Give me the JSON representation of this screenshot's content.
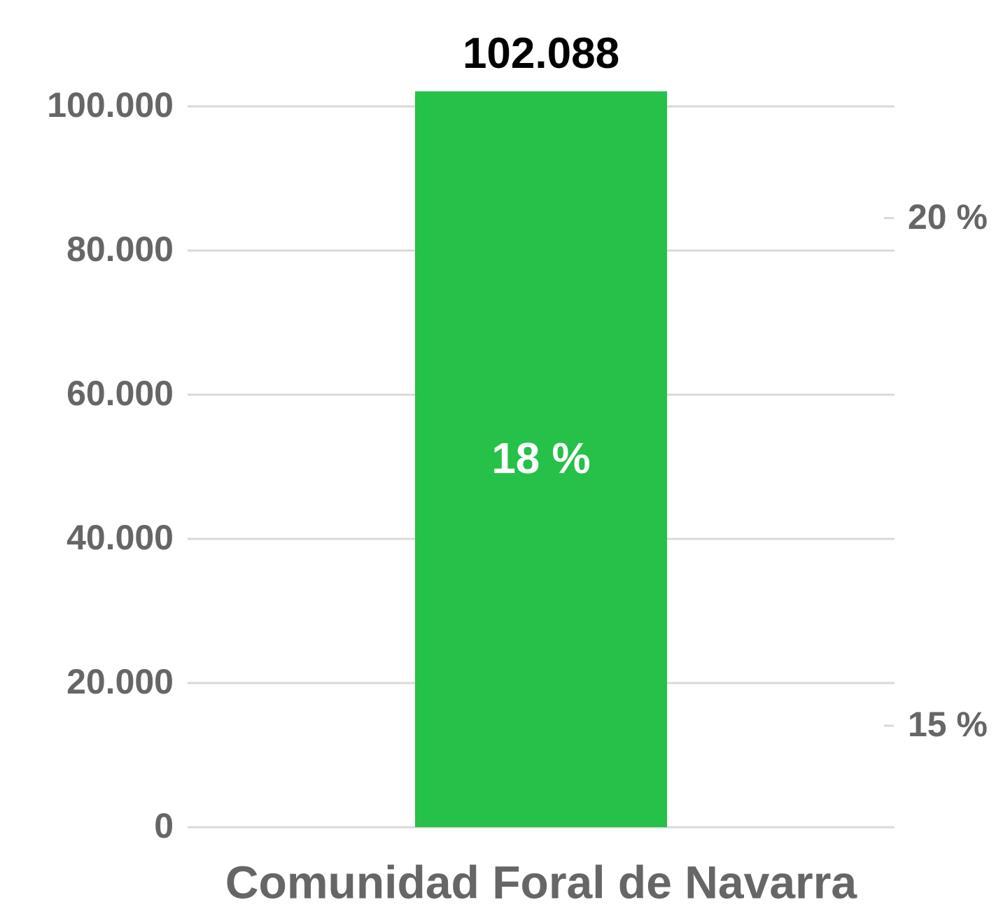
{
  "chart_data": {
    "type": "bar",
    "categories": [
      "Comunidad Foral de Navarra"
    ],
    "series": [
      {
        "color": "#25c148",
        "values": [
          102088
        ],
        "value_labels": [
          "102.088"
        ]
      },
      {
        "axis": "y2",
        "color": "#ffffff",
        "values": [
          18
        ],
        "value_labels": [
          "18 %"
        ]
      }
    ],
    "ylim": [
      0,
      100000
    ],
    "yticks": [
      0,
      {
        "value": 20000,
        "label": "20.000"
      },
      {
        "value": 40000,
        "label": "40.000"
      },
      {
        "value": 60000,
        "label": "60.000"
      },
      {
        "value": 80000,
        "label": "80.000"
      },
      {
        "value": 100000,
        "label": "100.000"
      }
    ],
    "y2lim": [
      14,
      21.1
    ],
    "y2ticks": [
      {
        "value": 15,
        "label": "15 %"
      },
      {
        "value": 20,
        "label": "20 %"
      }
    ],
    "grid": true
  }
}
